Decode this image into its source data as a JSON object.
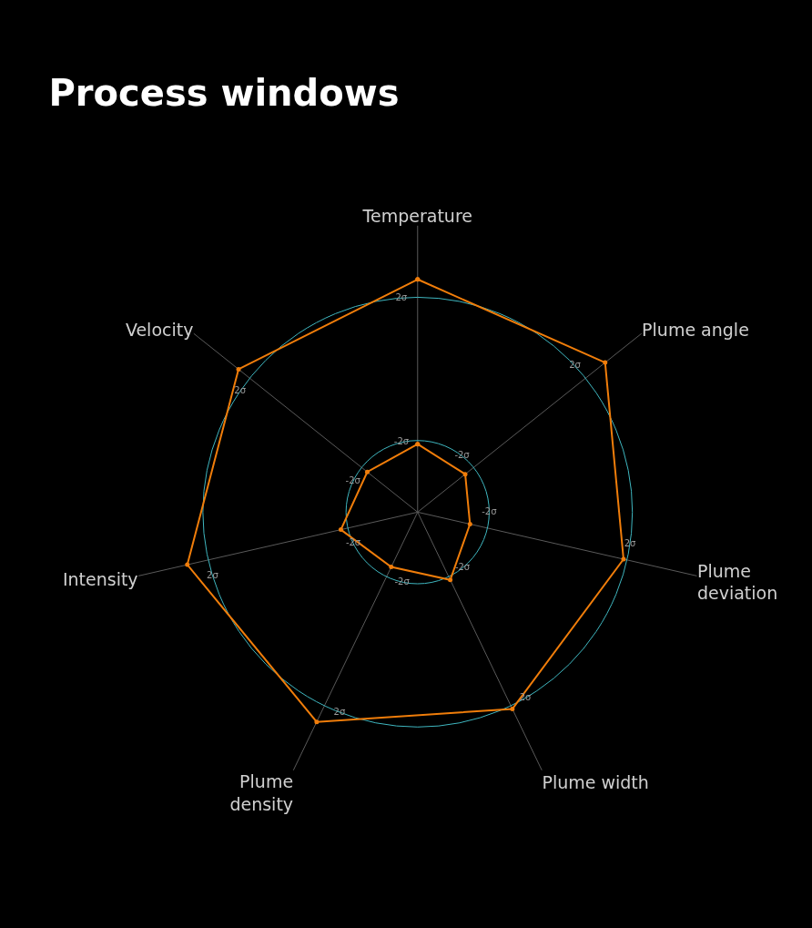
{
  "chart_data": {
    "type": "radar",
    "title": "Process windows",
    "categories": [
      "Temperature",
      "Plume angle",
      "Plume deviation",
      "Plume width",
      "Plume density",
      "Intensity",
      "Velocity"
    ],
    "series": [
      {
        "color": "#f07d0a",
        "values": [
          2.5,
          2.7,
          1.9,
          2.1,
          2.5,
          2.6,
          2.4
        ]
      },
      {
        "color": "#f07d0a",
        "values": [
          -2.1,
          -2.3,
          -2.5,
          -1.9,
          -2.3,
          -1.8,
          -2.2
        ]
      }
    ],
    "ylim": [
      -4,
      4
    ],
    "yticks": [
      {
        "value": -2,
        "label": "-2σ"
      },
      {
        "value": 2,
        "label": "2σ"
      }
    ],
    "marker": "circle",
    "line_style": "solid",
    "grid": true
  }
}
